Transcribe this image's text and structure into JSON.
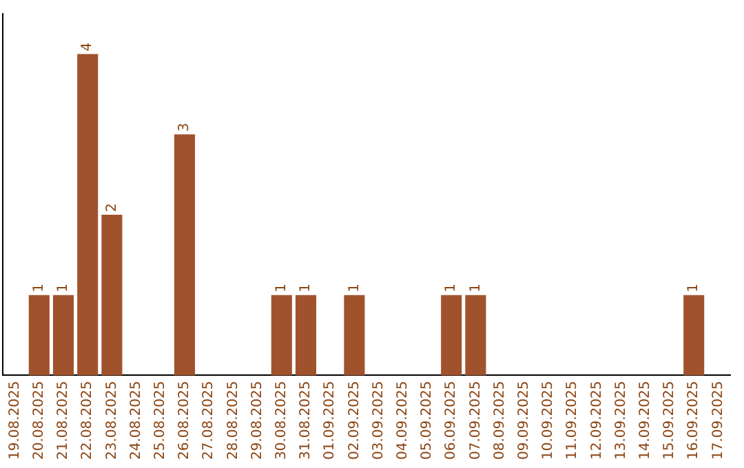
{
  "chart_data": {
    "type": "bar",
    "categories": [
      "19.08.2025",
      "20.08.2025",
      "21.08.2025",
      "22.08.2025",
      "23.08.2025",
      "24.08.2025",
      "25.08.2025",
      "26.08.2025",
      "27.08.2025",
      "28.08.2025",
      "29.08.2025",
      "30.08.2025",
      "31.08.2025",
      "01.09.2025",
      "02.09.2025",
      "03.09.2025",
      "04.09.2025",
      "05.09.2025",
      "06.09.2025",
      "07.09.2025",
      "08.09.2025",
      "09.09.2025",
      "10.09.2025",
      "11.09.2025",
      "12.09.2025",
      "13.09.2025",
      "14.09.2025",
      "15.09.2025",
      "16.09.2025",
      "17.09.2025"
    ],
    "values": [
      0,
      1,
      1,
      4,
      2,
      0,
      0,
      3,
      0,
      0,
      0,
      1,
      1,
      0,
      1,
      0,
      0,
      0,
      1,
      1,
      0,
      0,
      0,
      0,
      0,
      0,
      0,
      0,
      1,
      0
    ],
    "value_labels": [
      null,
      "1",
      "1",
      "4",
      "2",
      null,
      null,
      "3",
      null,
      null,
      null,
      "1",
      "1",
      null,
      "1",
      null,
      null,
      null,
      "1",
      "1",
      null,
      null,
      null,
      null,
      null,
      null,
      null,
      null,
      "1",
      null
    ],
    "color": "#a0522d",
    "grid": false,
    "legend": false,
    "tick_labels": "x"
  }
}
